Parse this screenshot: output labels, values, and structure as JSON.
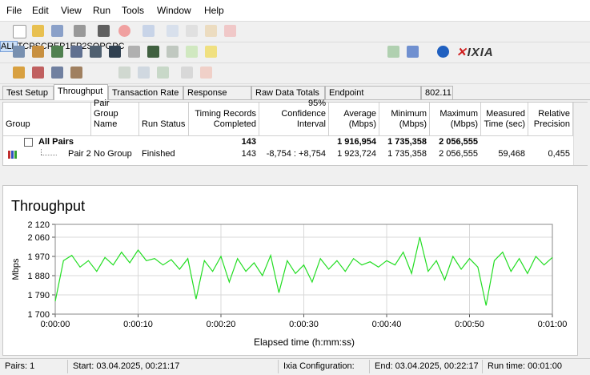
{
  "menu": [
    "File",
    "Edit",
    "View",
    "Run",
    "Tools",
    "Window",
    "Help"
  ],
  "toolbar_filters": [
    "ALL",
    "TCP",
    "SCR",
    "EP1",
    "EP2",
    "SQ",
    "PG",
    "PC"
  ],
  "logo": "IXIA",
  "tabs": [
    "Test Setup",
    "Throughput",
    "Transaction Rate",
    "Response Time",
    "Raw Data Totals",
    "Endpoint Configuration",
    "802.11"
  ],
  "table": {
    "headers": [
      [
        "Group"
      ],
      [
        "Pair Group",
        "Name"
      ],
      [
        "Run Status"
      ],
      [
        "Timing Records",
        "Completed"
      ],
      [
        "95% Confidence",
        "Interval"
      ],
      [
        "Average",
        "(Mbps)"
      ],
      [
        "Minimum",
        "(Mbps)"
      ],
      [
        "Maximum",
        "(Mbps)"
      ],
      [
        "Measured",
        "Time (sec)"
      ],
      [
        "Relative",
        "Precision"
      ]
    ],
    "rows": [
      {
        "group": "All Pairs",
        "records": "143",
        "average": "1 916,954",
        "minimum": "1 735,358",
        "maximum": "2 056,555"
      },
      {
        "group": "Pair 2",
        "pair_group": "No Group",
        "status": "Finished",
        "records": "143",
        "interval": "-8,754 : +8,754",
        "average": "1 923,724",
        "minimum": "1 735,358",
        "maximum": "2 056,555",
        "time": "59,468",
        "precision": "0,455"
      }
    ]
  },
  "chart_data": {
    "type": "line",
    "title": "Throughput",
    "y_label": "Mbps",
    "x_label": "Elapsed time (h:mm:ss)",
    "x": [
      0,
      1,
      2,
      3,
      4,
      5,
      6,
      7,
      8,
      9,
      10,
      11,
      12,
      13,
      14,
      15,
      16,
      17,
      18,
      19,
      20,
      21,
      22,
      23,
      24,
      25,
      26,
      27,
      28,
      29,
      30,
      31,
      32,
      33,
      34,
      35,
      36,
      37,
      38,
      39,
      40,
      41,
      42,
      43,
      44,
      45,
      46,
      47,
      48,
      49,
      50,
      51,
      52,
      53,
      54,
      55,
      56,
      57,
      58,
      59,
      60
    ],
    "series": [
      {
        "name": "Pair 2",
        "color": "#22dd22",
        "values": [
          1760,
          1950,
          1975,
          1920,
          1950,
          1900,
          1965,
          1930,
          1990,
          1940,
          2000,
          1950,
          1960,
          1930,
          1955,
          1910,
          1960,
          1770,
          1950,
          1900,
          1970,
          1850,
          1960,
          1900,
          1940,
          1880,
          1975,
          1800,
          1950,
          1890,
          1930,
          1850,
          1960,
          1910,
          1950,
          1900,
          1960,
          1930,
          1945,
          1920,
          1950,
          1930,
          1990,
          1890,
          2060,
          1900,
          1950,
          1860,
          1970,
          1910,
          1960,
          1920,
          1740,
          1950,
          1990,
          1900,
          1960,
          1890,
          1970,
          1930,
          1965
        ]
      }
    ],
    "xlim": [
      0,
      60
    ],
    "xticks": [
      {
        "value": 0,
        "label": "0:00:00"
      },
      {
        "value": 10,
        "label": "0:00:10"
      },
      {
        "value": 20,
        "label": "0:00:20"
      },
      {
        "value": 30,
        "label": "0:00:30"
      },
      {
        "value": 40,
        "label": "0:00:40"
      },
      {
        "value": 50,
        "label": "0:00:50"
      },
      {
        "value": 60,
        "label": "0:01:00"
      }
    ],
    "ylim": [
      1700,
      2120
    ],
    "yticks": [
      {
        "value": 1700,
        "label": "1 700"
      },
      {
        "value": 1790,
        "label": "1 790"
      },
      {
        "value": 1880,
        "label": "1 880"
      },
      {
        "value": 1970,
        "label": "1 970"
      },
      {
        "value": 2060,
        "label": "2 060"
      },
      {
        "value": 2120,
        "label": "2 120"
      }
    ]
  },
  "status": {
    "pairs": "Pairs: 1",
    "start": "Start: 03.04.2025, 00:21:17",
    "config": "Ixia Configuration:",
    "end": "End: 03.04.2025, 00:22:17",
    "run_time": "Run time: 00:01:00"
  }
}
